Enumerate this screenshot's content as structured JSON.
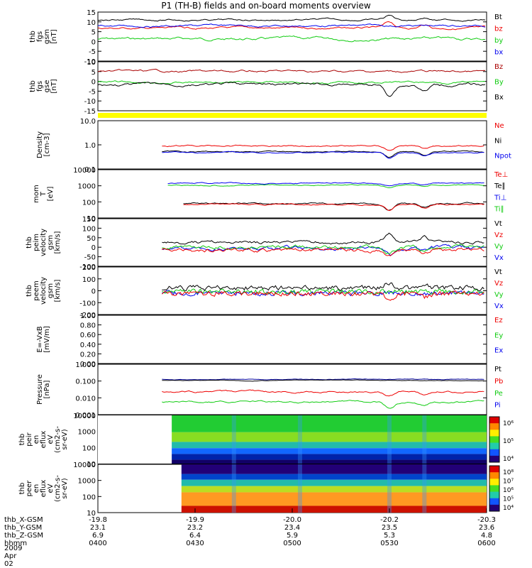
{
  "title": "P1 (TH-B) fields and on-board moments overview",
  "date_label": "2009 Apr 02",
  "colors": {
    "black": "#000000",
    "red": "#ee0000",
    "green": "#11cc11",
    "blue": "#0000ee",
    "yellow": "#ffff00",
    "dark_red": "#aa0000",
    "dark_blue": "#000099"
  },
  "chart_data": [
    {
      "type": "line",
      "ylabel": [
        "thb",
        "fgs",
        "gsm",
        "[nT]"
      ],
      "ylim": [
        -10,
        15
      ],
      "yticks": [
        15,
        10,
        5,
        0,
        -5,
        -10
      ],
      "legend": [
        {
          "label": "Bt",
          "color": "#000000"
        },
        {
          "label": "bz",
          "color": "#ee0000"
        },
        {
          "label": "by",
          "color": "#11cc11"
        },
        {
          "label": "bx",
          "color": "#0000ee"
        }
      ]
    },
    {
      "type": "line",
      "ylabel": [
        "thb",
        "fgs",
        "gse",
        "[nT]"
      ],
      "ylim": [
        -17,
        10
      ],
      "yticks": [
        10,
        5,
        0,
        -5,
        -10,
        -15
      ],
      "legend": [
        {
          "label": "Bz",
          "color": "#aa0000"
        },
        {
          "label": "By",
          "color": "#11cc11"
        },
        {
          "label": "Bx",
          "color": "#000000"
        }
      ]
    },
    {
      "type": "line",
      "ylabel": [
        "Density",
        "[cm-3]"
      ],
      "log": true,
      "ylim": [
        0.1,
        10
      ],
      "yticks": [
        "10.0",
        "1.0",
        "0.1"
      ],
      "legend": [
        {
          "label": "Ne",
          "color": "#ee0000"
        },
        {
          "label": "Ni",
          "color": "#000000"
        },
        {
          "label": "Npot",
          "color": "#0000ee"
        }
      ]
    },
    {
      "type": "line",
      "ylabel": [
        "mom",
        "T",
        "[eV]"
      ],
      "log": true,
      "ylim": [
        10,
        10000
      ],
      "yticks": [
        "10000",
        "1000",
        "100",
        "10"
      ],
      "legend": [
        {
          "label": "Te⊥",
          "color": "#ee0000"
        },
        {
          "label": "Te∥",
          "color": "#000000"
        },
        {
          "label": "Ti⊥",
          "color": "#0000ee"
        },
        {
          "label": "Ti∥",
          "color": "#11cc11"
        }
      ]
    },
    {
      "type": "line",
      "ylabel": [
        "thb",
        "peim",
        "velocity",
        "gsm",
        "[km/s]"
      ],
      "ylim": [
        -100,
        150
      ],
      "yticks": [
        150,
        100,
        50,
        0,
        -50,
        -100
      ],
      "legend": [
        {
          "label": "Vt",
          "color": "#000000"
        },
        {
          "label": "Vz",
          "color": "#ee0000"
        },
        {
          "label": "Vy",
          "color": "#11cc11"
        },
        {
          "label": "Vx",
          "color": "#0000ee"
        }
      ]
    },
    {
      "type": "line",
      "ylabel": [
        "thb",
        "peem",
        "velocity",
        "gsm",
        "[km/s]"
      ],
      "ylim": [
        -200,
        200
      ],
      "yticks": [
        200,
        100,
        0,
        -100,
        -200
      ],
      "legend": [
        {
          "label": "Vt",
          "color": "#000000"
        },
        {
          "label": "Vz",
          "color": "#ee0000"
        },
        {
          "label": "Vy",
          "color": "#11cc11"
        },
        {
          "label": "Vx",
          "color": "#0000ee"
        }
      ]
    },
    {
      "type": "line",
      "ylabel": [
        "E=-VxB",
        "[mV/m]"
      ],
      "ylim": [
        0,
        1
      ],
      "yticks": [
        "1.00",
        "0.80",
        "0.60",
        "0.40",
        "0.20",
        "0.00"
      ],
      "legend": [
        {
          "label": "Ez",
          "color": "#ee0000"
        },
        {
          "label": "Ey",
          "color": "#11cc11"
        },
        {
          "label": "Ex",
          "color": "#0000ee"
        }
      ]
    },
    {
      "type": "line",
      "ylabel": [
        "Pressure",
        "[nPa]"
      ],
      "log": true,
      "ylim": [
        0.001,
        1
      ],
      "yticks": [
        "1.000",
        "0.100",
        "0.010",
        "0.001"
      ],
      "legend": [
        {
          "label": "Pt",
          "color": "#000000"
        },
        {
          "label": "Pb",
          "color": "#ee0000"
        },
        {
          "label": "Pe",
          "color": "#11cc11"
        },
        {
          "label": "Pi",
          "color": "#0000ee"
        }
      ]
    },
    {
      "type": "heatmap",
      "ylabel": [
        "thb",
        "peir",
        "en",
        "eflux",
        "eV",
        "(cm2-s-",
        "sr-eV)"
      ],
      "yticks": [
        "10000",
        "1000",
        "100",
        "10"
      ],
      "colorbar_ticks": [
        "10⁶",
        "10⁵",
        "10⁴"
      ]
    },
    {
      "type": "heatmap",
      "ylabel": [
        "thb",
        "peer",
        "en",
        "eflux",
        "eV",
        "(cm2-s-",
        "sr-eV)"
      ],
      "yticks": [
        "10000",
        "1000",
        "100",
        "10"
      ],
      "colorbar_ticks": [
        "10⁸",
        "10⁷",
        "10⁶",
        "10⁵",
        "10⁴"
      ]
    }
  ],
  "x_axis": {
    "row_labels": [
      "thb_X-GSM",
      "thb_Y-GSM",
      "thb_Z-GSM",
      "hhmm"
    ],
    "ticks": [
      {
        "X": "-19.8",
        "Y": "23.1",
        "Z": "6.9",
        "hhmm": "0400"
      },
      {
        "X": "-19.9",
        "Y": "23.2",
        "Z": "6.4",
        "hhmm": "0430"
      },
      {
        "X": "-20.0",
        "Y": "23.4",
        "Z": "5.9",
        "hhmm": "0500"
      },
      {
        "X": "-20.2",
        "Y": "23.5",
        "Z": "5.3",
        "hhmm": "0530"
      },
      {
        "X": "-20.3",
        "Y": "23.6",
        "Z": "4.8",
        "hhmm": "0600"
      }
    ]
  }
}
